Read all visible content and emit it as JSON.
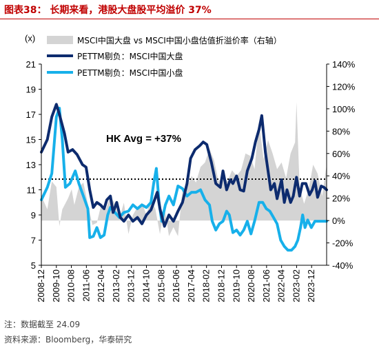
{
  "header": {
    "title": "图表38：  长期来看，港股大盘股平均溢价 37%"
  },
  "footer": {
    "note": "注：数据截至 24.09",
    "source": "资料来源：Bloomberg，华泰研究"
  },
  "chart_data": {
    "type": "line",
    "left_axis_unit": "(x)",
    "y_left": {
      "min": 5,
      "max": 21,
      "ticks": [
        "21",
        "19",
        "17",
        "15",
        "13",
        "11",
        "9",
        "7",
        "5"
      ]
    },
    "y_right": {
      "min": -40,
      "max": 140,
      "ticks": [
        "140%",
        "120%",
        "100%",
        "80%",
        "60%",
        "40%",
        "20%",
        "0%",
        "-20%",
        "-40%"
      ]
    },
    "x_start": 2008.917,
    "x_end": 2024.75,
    "x_ticks": [
      "2008-12",
      "2009-10",
      "2010-08",
      "2011-06",
      "2012-04",
      "2013-02",
      "2013-12",
      "2014-10",
      "2015-08",
      "2016-06",
      "2017-04",
      "2018-02",
      "2018-12",
      "2019-10",
      "2020-08",
      "2021-06",
      "2022-04",
      "2023-02",
      "2023-12"
    ],
    "annotation": "HK Avg = +37%",
    "avg_line": 11.85,
    "grid": false,
    "colors": {
      "area": "#d4d4d4",
      "large": "#0d2b6e",
      "small": "#17b0ea",
      "avg": "#000000"
    },
    "series": [
      {
        "name": "MSCI中国大盘 vs MSCI中国小盘估值折溢价率（右轴）",
        "kind": "area",
        "axis": "right",
        "points": [
          [
            2008.917,
            22
          ],
          [
            2009.25,
            10
          ],
          [
            2009.5,
            35
          ],
          [
            2009.75,
            30
          ],
          [
            2009.92,
            -5
          ],
          [
            2010.08,
            10
          ],
          [
            2010.4,
            20
          ],
          [
            2010.6,
            28
          ],
          [
            2010.75,
            14
          ],
          [
            2011.0,
            30
          ],
          [
            2011.25,
            34
          ],
          [
            2011.5,
            15
          ],
          [
            2011.75,
            -4
          ],
          [
            2012.0,
            -2
          ],
          [
            2012.25,
            15
          ],
          [
            2012.5,
            10
          ],
          [
            2012.75,
            22
          ],
          [
            2013.0,
            15
          ],
          [
            2013.25,
            2
          ],
          [
            2013.5,
            16
          ],
          [
            2013.75,
            -12
          ],
          [
            2014.0,
            5
          ],
          [
            2014.25,
            12
          ],
          [
            2014.5,
            16
          ],
          [
            2014.75,
            5
          ],
          [
            2015.0,
            20
          ],
          [
            2015.25,
            10
          ],
          [
            2015.5,
            -12
          ],
          [
            2015.75,
            12
          ],
          [
            2016.0,
            -14
          ],
          [
            2016.25,
            -6
          ],
          [
            2016.5,
            -14
          ],
          [
            2016.75,
            28
          ],
          [
            2017.0,
            30
          ],
          [
            2017.25,
            40
          ],
          [
            2017.5,
            34
          ],
          [
            2017.75,
            48
          ],
          [
            2018.0,
            52
          ],
          [
            2018.25,
            64
          ],
          [
            2018.5,
            54
          ],
          [
            2018.75,
            35
          ],
          [
            2019.0,
            40
          ],
          [
            2019.25,
            35
          ],
          [
            2019.5,
            45
          ],
          [
            2019.75,
            40
          ],
          [
            2020.0,
            45
          ],
          [
            2020.25,
            60
          ],
          [
            2020.5,
            58
          ],
          [
            2020.75,
            46
          ],
          [
            2021.0,
            88
          ],
          [
            2021.25,
            55
          ],
          [
            2021.5,
            72
          ],
          [
            2021.75,
            60
          ],
          [
            2022.0,
            46
          ],
          [
            2022.25,
            52
          ],
          [
            2022.5,
            38
          ],
          [
            2022.75,
            60
          ],
          [
            2023.0,
            70
          ],
          [
            2023.08,
            106
          ],
          [
            2023.25,
            30
          ],
          [
            2023.5,
            15
          ],
          [
            2023.75,
            28
          ],
          [
            2024.0,
            50
          ],
          [
            2024.25,
            42
          ],
          [
            2024.5,
            22
          ],
          [
            2024.75,
            50
          ]
        ]
      },
      {
        "name": "PETTM剔负：MSCI中国大盘",
        "kind": "line",
        "axis": "left",
        "points": [
          [
            2008.917,
            14.0
          ],
          [
            2009.25,
            15.0
          ],
          [
            2009.5,
            16.8
          ],
          [
            2009.75,
            17.8
          ],
          [
            2009.92,
            17.0
          ],
          [
            2010.2,
            15.5
          ],
          [
            2010.4,
            14.0
          ],
          [
            2010.65,
            14.2
          ],
          [
            2010.9,
            13.8
          ],
          [
            2011.2,
            13.0
          ],
          [
            2011.4,
            12.8
          ],
          [
            2011.6,
            11.0
          ],
          [
            2011.8,
            9.6
          ],
          [
            2012.0,
            10.0
          ],
          [
            2012.2,
            9.8
          ],
          [
            2012.4,
            9.5
          ],
          [
            2012.55,
            10.2
          ],
          [
            2012.75,
            10.5
          ],
          [
            2012.9,
            9.2
          ],
          [
            2013.1,
            10.0
          ],
          [
            2013.3,
            8.8
          ],
          [
            2013.5,
            8.5
          ],
          [
            2013.75,
            9.0
          ],
          [
            2014.0,
            8.5
          ],
          [
            2014.25,
            8.8
          ],
          [
            2014.5,
            8.3
          ],
          [
            2014.75,
            9.0
          ],
          [
            2015.0,
            9.4
          ],
          [
            2015.15,
            10.0
          ],
          [
            2015.35,
            10.8
          ],
          [
            2015.5,
            9.5
          ],
          [
            2015.75,
            8.1
          ],
          [
            2016.0,
            9.0
          ],
          [
            2016.25,
            8.5
          ],
          [
            2016.5,
            9.3
          ],
          [
            2016.75,
            10.0
          ],
          [
            2017.0,
            11.5
          ],
          [
            2017.2,
            13.5
          ],
          [
            2017.45,
            14.2
          ],
          [
            2017.7,
            14.5
          ],
          [
            2017.9,
            14.8
          ],
          [
            2018.1,
            14.6
          ],
          [
            2018.35,
            13.2
          ],
          [
            2018.6,
            11.5
          ],
          [
            2018.85,
            11.2
          ],
          [
            2019.0,
            12.5
          ],
          [
            2019.2,
            11.0
          ],
          [
            2019.4,
            11.8
          ],
          [
            2019.55,
            11.5
          ],
          [
            2019.75,
            12.1
          ],
          [
            2019.95,
            11.0
          ],
          [
            2020.15,
            10.9
          ],
          [
            2020.35,
            12.5
          ],
          [
            2020.6,
            13.5
          ],
          [
            2020.8,
            14.8
          ],
          [
            2021.0,
            15.8
          ],
          [
            2021.15,
            16.9
          ],
          [
            2021.35,
            14.0
          ],
          [
            2021.5,
            12.5
          ],
          [
            2021.65,
            11.0
          ],
          [
            2021.85,
            11.5
          ],
          [
            2022.0,
            10.3
          ],
          [
            2022.25,
            11.8
          ],
          [
            2022.4,
            10.0
          ],
          [
            2022.55,
            11.0
          ],
          [
            2022.75,
            10.0
          ],
          [
            2022.9,
            10.5
          ],
          [
            2023.08,
            12.0
          ],
          [
            2023.25,
            10.5
          ],
          [
            2023.4,
            11.5
          ],
          [
            2023.6,
            11.5
          ],
          [
            2023.8,
            10.6
          ],
          [
            2023.95,
            11.0
          ],
          [
            2024.1,
            11.7
          ],
          [
            2024.25,
            10.4
          ],
          [
            2024.45,
            11.3
          ],
          [
            2024.6,
            11.2
          ],
          [
            2024.75,
            11.0
          ]
        ]
      },
      {
        "name": "PETTM剔负：MSCI中国小盘",
        "kind": "line",
        "axis": "left",
        "points": [
          [
            2008.917,
            10.2
          ],
          [
            2009.25,
            11.2
          ],
          [
            2009.5,
            12.3
          ],
          [
            2009.75,
            16.8
          ],
          [
            2009.92,
            17.5
          ],
          [
            2010.08,
            15.0
          ],
          [
            2010.25,
            11.2
          ],
          [
            2010.5,
            11.5
          ],
          [
            2010.8,
            12.5
          ],
          [
            2011.0,
            11.5
          ],
          [
            2011.25,
            10.5
          ],
          [
            2011.5,
            9.5
          ],
          [
            2011.6,
            7.2
          ],
          [
            2011.8,
            7.3
          ],
          [
            2012.0,
            8.0
          ],
          [
            2012.2,
            7.2
          ],
          [
            2012.4,
            7.4
          ],
          [
            2012.6,
            9.0
          ],
          [
            2012.75,
            9.6
          ],
          [
            2013.0,
            9.2
          ],
          [
            2013.25,
            8.8
          ],
          [
            2013.5,
            9.2
          ],
          [
            2013.75,
            9.3
          ],
          [
            2014.0,
            9.8
          ],
          [
            2014.25,
            9.5
          ],
          [
            2014.5,
            9.8
          ],
          [
            2014.75,
            9.6
          ],
          [
            2015.0,
            10.0
          ],
          [
            2015.15,
            11.5
          ],
          [
            2015.3,
            12.7
          ],
          [
            2015.45,
            10.0
          ],
          [
            2015.6,
            8.5
          ],
          [
            2015.8,
            9.8
          ],
          [
            2016.0,
            10.5
          ],
          [
            2016.25,
            9.8
          ],
          [
            2016.5,
            11.3
          ],
          [
            2016.75,
            11.1
          ],
          [
            2017.0,
            10.5
          ],
          [
            2017.25,
            10.8
          ],
          [
            2017.5,
            10.8
          ],
          [
            2017.75,
            11.0
          ],
          [
            2018.0,
            10.2
          ],
          [
            2018.25,
            9.8
          ],
          [
            2018.4,
            8.5
          ],
          [
            2018.6,
            7.8
          ],
          [
            2018.8,
            8.3
          ],
          [
            2019.0,
            8.5
          ],
          [
            2019.2,
            9.3
          ],
          [
            2019.35,
            9.0
          ],
          [
            2019.55,
            7.6
          ],
          [
            2019.75,
            7.8
          ],
          [
            2019.95,
            7.4
          ],
          [
            2020.15,
            7.8
          ],
          [
            2020.35,
            8.5
          ],
          [
            2020.55,
            7.5
          ],
          [
            2020.75,
            8.5
          ],
          [
            2021.0,
            10.0
          ],
          [
            2021.2,
            10.0
          ],
          [
            2021.4,
            9.5
          ],
          [
            2021.6,
            9.3
          ],
          [
            2021.8,
            8.8
          ],
          [
            2022.0,
            8.3
          ],
          [
            2022.2,
            7.0
          ],
          [
            2022.4,
            6.5
          ],
          [
            2022.6,
            6.2
          ],
          [
            2022.8,
            6.2
          ],
          [
            2023.0,
            6.5
          ],
          [
            2023.15,
            7.0
          ],
          [
            2023.3,
            8.0
          ],
          [
            2023.42,
            9.0
          ],
          [
            2023.55,
            8.0
          ],
          [
            2023.7,
            8.6
          ],
          [
            2023.9,
            8.0
          ],
          [
            2024.1,
            8.5
          ],
          [
            2024.3,
            8.5
          ],
          [
            2024.5,
            8.5
          ],
          [
            2024.75,
            8.5
          ]
        ]
      }
    ]
  }
}
